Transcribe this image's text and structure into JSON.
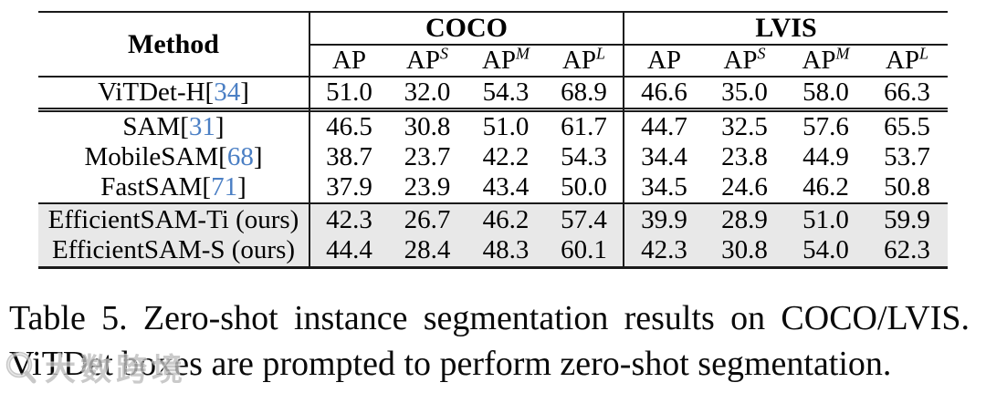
{
  "table": {
    "method_header": "Method",
    "groups": [
      "COCO",
      "LVIS"
    ],
    "columns": [
      {
        "base": "AP",
        "sup": ""
      },
      {
        "base": "AP",
        "sup": "S"
      },
      {
        "base": "AP",
        "sup": "M"
      },
      {
        "base": "AP",
        "sup": "L"
      },
      {
        "base": "AP",
        "sup": ""
      },
      {
        "base": "AP",
        "sup": "S"
      },
      {
        "base": "AP",
        "sup": "M"
      },
      {
        "base": "AP",
        "sup": "L"
      }
    ],
    "rows": [
      {
        "method": "ViTDet-H",
        "cite": "34",
        "suffix": "",
        "values": [
          "51.0",
          "32.0",
          "54.3",
          "68.9",
          "46.6",
          "35.0",
          "58.0",
          "66.3"
        ],
        "highlight": false,
        "rule_below": "double"
      },
      {
        "method": "SAM",
        "cite": "31",
        "suffix": "",
        "values": [
          "46.5",
          "30.8",
          "51.0",
          "61.7",
          "44.7",
          "32.5",
          "57.6",
          "65.5"
        ],
        "highlight": false,
        "rule_below": "none"
      },
      {
        "method": "MobileSAM",
        "cite": "68",
        "suffix": "",
        "values": [
          "38.7",
          "23.7",
          "42.2",
          "54.3",
          "34.4",
          "23.8",
          "44.9",
          "53.7"
        ],
        "highlight": false,
        "rule_below": "none"
      },
      {
        "method": "FastSAM",
        "cite": "71",
        "suffix": "",
        "values": [
          "37.9",
          "23.9",
          "43.4",
          "50.0",
          "34.5",
          "24.6",
          "46.2",
          "50.8"
        ],
        "highlight": false,
        "rule_below": "single"
      },
      {
        "method": "EfficientSAM-Ti",
        "cite": null,
        "suffix": " (ours)",
        "values": [
          "42.3",
          "26.7",
          "46.2",
          "57.4",
          "39.9",
          "28.9",
          "51.0",
          "59.9"
        ],
        "highlight": true,
        "rule_below": "none"
      },
      {
        "method": "EfficientSAM-S",
        "cite": null,
        "suffix": " (ours)",
        "values": [
          "44.4",
          "28.4",
          "48.3",
          "60.1",
          "42.3",
          "30.8",
          "54.0",
          "62.3"
        ],
        "highlight": true,
        "rule_below": "none"
      }
    ]
  },
  "caption": {
    "line1": "Table 5. Zero-shot instance segmentation results on COCO/LVIS.",
    "line2": "ViTDet boxes are prompted to perform zero-shot segmentation."
  },
  "watermark": {
    "text": "大数跨境"
  },
  "colors": {
    "cite_blue": "#4b7fc4",
    "highlight_bg": "#e8e8e8",
    "rule": "#1a1a1a"
  }
}
